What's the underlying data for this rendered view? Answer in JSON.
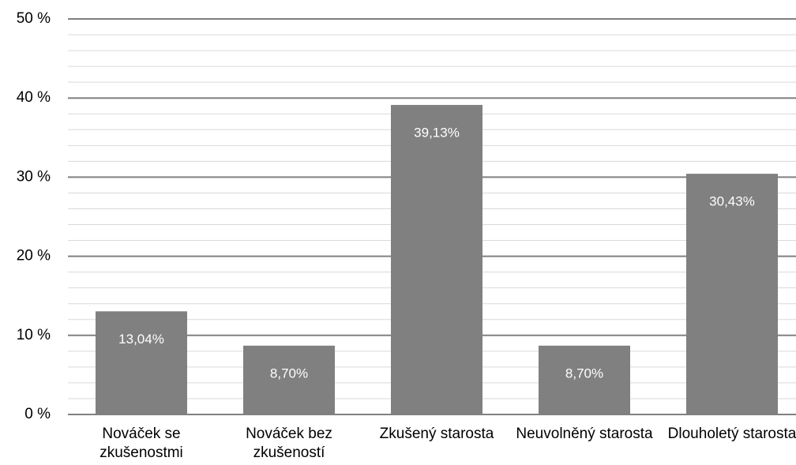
{
  "chart_data": {
    "type": "bar",
    "categories": [
      "Nováček se zkušenostmi",
      "Nováček bez zkušeností",
      "Zkušený starosta",
      "Neuvolněný starosta",
      "Dlouholetý starosta"
    ],
    "values": [
      13.04,
      8.7,
      39.13,
      8.7,
      30.43
    ],
    "value_labels": [
      "13,04%",
      "8,70%",
      "39,13%",
      "8,70%",
      "30,43%"
    ],
    "color": "#808080",
    "ylim": [
      0,
      50
    ],
    "yticks": [
      {
        "value": 0,
        "label": "0 %"
      },
      {
        "value": 10,
        "label": "10 %"
      },
      {
        "value": 20,
        "label": "20 %"
      },
      {
        "value": 30,
        "label": "30 %"
      },
      {
        "value": 40,
        "label": "40 %"
      },
      {
        "value": 50,
        "label": "50 %"
      }
    ],
    "minor_yticks": [
      2,
      4,
      6,
      8,
      12,
      14,
      16,
      18,
      22,
      24,
      26,
      28,
      32,
      34,
      36,
      38,
      42,
      44,
      46,
      48
    ],
    "grid": true
  }
}
